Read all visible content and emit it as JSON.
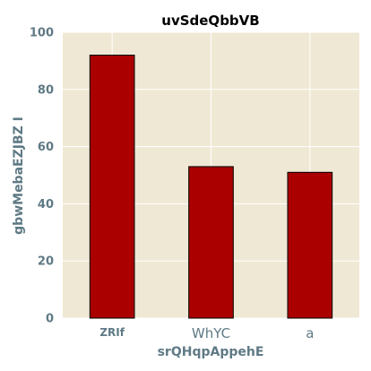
{
  "chart_data": {
    "type": "bar",
    "title": "uvSdeQbbVB",
    "xlabel": "srQHqpAppehE",
    "ylabel": "gbwMebaEZJBZ I",
    "categories": [
      "ZRIf",
      "WhYC",
      "a"
    ],
    "values": [
      92,
      53,
      51
    ],
    "ylim": [
      0,
      100
    ],
    "yticks": [
      "0",
      "20",
      "40",
      "60",
      "80",
      "100"
    ],
    "grid": true,
    "colors": {
      "bar": "#aa0000",
      "bar_edge": "#000000",
      "plot_background": "#efe8d4",
      "grid": "#ffffff",
      "axis_text": "#5f7a85"
    }
  }
}
